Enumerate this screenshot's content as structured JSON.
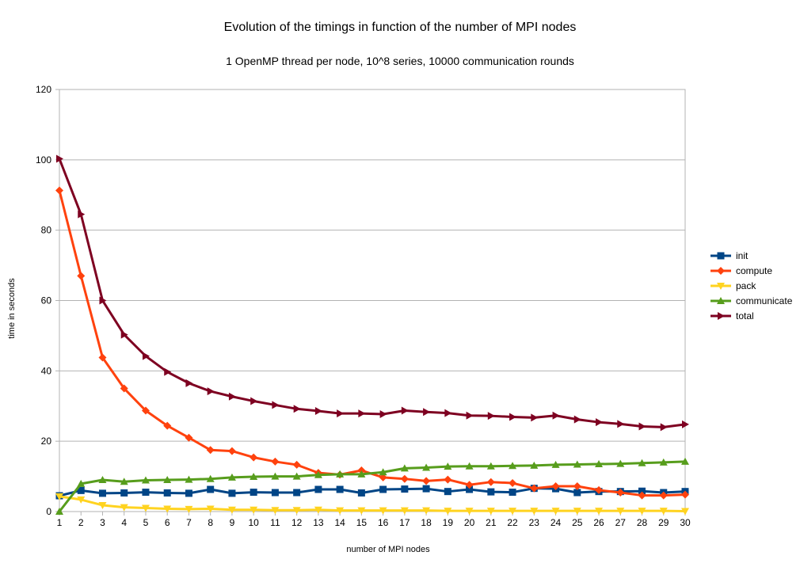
{
  "chart_data": {
    "type": "line",
    "title": "Evolution of the timings in function of the number of MPI nodes",
    "subtitle": "1 OpenMP thread per node, 10^8 series, 10000 communication rounds",
    "xlabel": "number of MPI nodes",
    "ylabel": "time in seconds",
    "x": [
      1,
      2,
      3,
      4,
      5,
      6,
      7,
      8,
      9,
      10,
      11,
      12,
      13,
      14,
      15,
      16,
      17,
      18,
      19,
      20,
      21,
      22,
      23,
      24,
      25,
      26,
      27,
      28,
      29,
      30
    ],
    "ylim": [
      0,
      120
    ],
    "yticks": [
      0,
      20,
      40,
      60,
      80,
      100,
      120
    ],
    "grid": true,
    "legend_position": "right",
    "series": [
      {
        "name": "init",
        "color": "#004586",
        "marker": "square",
        "values": [
          4.5,
          6.0,
          5.2,
          5.3,
          5.5,
          5.3,
          5.2,
          6.3,
          5.2,
          5.5,
          5.4,
          5.4,
          6.3,
          6.3,
          5.3,
          6.3,
          6.4,
          6.5,
          5.7,
          6.3,
          5.6,
          5.5,
          6.6,
          6.5,
          5.4,
          5.7,
          5.7,
          5.8,
          5.4,
          5.7
        ]
      },
      {
        "name": "compute",
        "color": "#ff420e",
        "marker": "diamond",
        "values": [
          91.3,
          67.0,
          43.8,
          35.0,
          28.7,
          24.4,
          21.0,
          17.5,
          17.2,
          15.4,
          14.2,
          13.3,
          11.0,
          10.5,
          11.7,
          9.7,
          9.3,
          8.7,
          9.1,
          7.6,
          8.4,
          8.1,
          6.6,
          7.2,
          7.2,
          6.1,
          5.4,
          4.6,
          4.6,
          4.8
        ]
      },
      {
        "name": "pack",
        "color": "#ffd320",
        "marker": "triangle-down",
        "values": [
          4.3,
          3.4,
          1.8,
          1.2,
          1.0,
          0.8,
          0.7,
          0.8,
          0.5,
          0.5,
          0.4,
          0.4,
          0.5,
          0.3,
          0.3,
          0.3,
          0.3,
          0.3,
          0.2,
          0.2,
          0.2,
          0.2,
          0.2,
          0.2,
          0.2,
          0.2,
          0.2,
          0.2,
          0.2,
          0.1
        ]
      },
      {
        "name": "communicate",
        "color": "#579d1c",
        "marker": "triangle-up",
        "values": [
          0.0,
          7.9,
          9.0,
          8.5,
          8.9,
          9.0,
          9.1,
          9.3,
          9.7,
          9.9,
          10.0,
          10.0,
          10.4,
          10.6,
          10.6,
          11.2,
          12.3,
          12.5,
          12.8,
          12.9,
          12.9,
          13.0,
          13.1,
          13.3,
          13.4,
          13.5,
          13.6,
          13.8,
          14.0,
          14.2
        ]
      },
      {
        "name": "total",
        "color": "#7e0021",
        "marker": "triangle-right",
        "values": [
          100.3,
          84.5,
          60.0,
          50.3,
          44.2,
          39.7,
          36.5,
          34.2,
          32.7,
          31.4,
          30.3,
          29.2,
          28.6,
          27.9,
          27.9,
          27.7,
          28.7,
          28.3,
          28.0,
          27.3,
          27.2,
          26.9,
          26.7,
          27.3,
          26.2,
          25.4,
          24.9,
          24.2,
          24.0,
          24.8
        ]
      }
    ]
  }
}
